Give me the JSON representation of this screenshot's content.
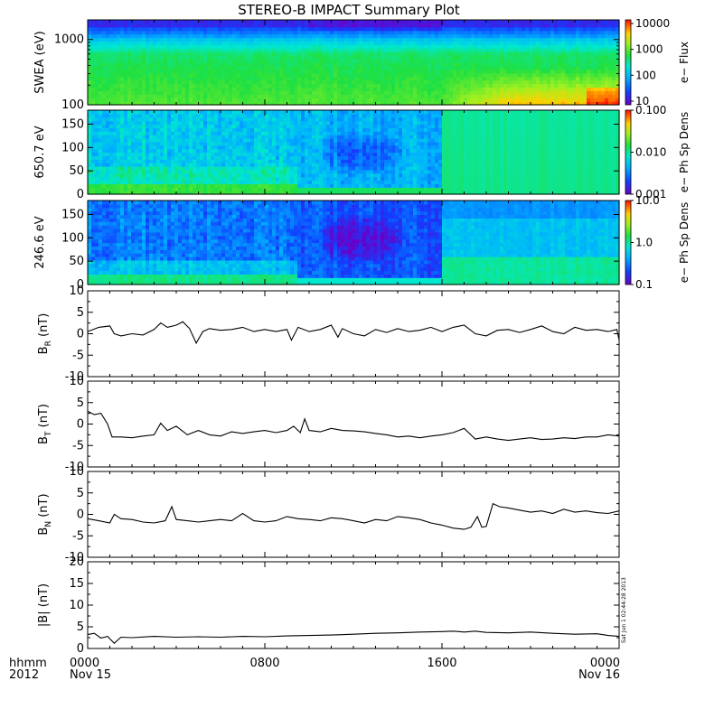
{
  "chart_data": {
    "type": "multi-panel",
    "title": "STEREO-B IMPACT Summary Plot",
    "x": {
      "ticks": [
        "0000",
        "0800",
        "1600",
        "0000"
      ],
      "tick_hours": [
        0,
        8,
        16,
        24
      ],
      "range_hours": [
        0,
        24
      ],
      "date_labels": [
        {
          "hour": 0,
          "label": "Nov 15"
        },
        {
          "hour": 24,
          "label": "Nov 16"
        }
      ],
      "label_time": "hhmm",
      "label_year": "2012"
    },
    "spectrograms": [
      {
        "id": "swea",
        "ylabel": "SWEA (eV)",
        "yscale": "log",
        "ylim": [
          100,
          2000
        ],
        "yticks": [
          100,
          1000
        ],
        "ytick_labels": [
          "100",
          "1000"
        ],
        "colorbar_label": "e− Flux",
        "colorbar_ticks": [
          "10",
          "100",
          "1000",
          "10000"
        ],
        "palette": "high-green"
      },
      {
        "id": "pad650",
        "ylabel": "650.7 eV",
        "yscale": "linear",
        "ylim": [
          0,
          180
        ],
        "yticks": [
          0,
          50,
          100,
          150
        ],
        "colorbar_label": "e− Ph Sp Dens",
        "colorbar_ticks": [
          "0.001",
          "0.010",
          "0.100"
        ],
        "palette": "mid-blue"
      },
      {
        "id": "pad246",
        "ylabel": "246.6 eV",
        "yscale": "linear",
        "ylim": [
          0,
          180
        ],
        "yticks": [
          0,
          50,
          100,
          150
        ],
        "colorbar_label": "e− Ph Sp Dens",
        "colorbar_ticks": [
          "0.1",
          "1.0",
          "10.0"
        ],
        "palette": "low-blue"
      }
    ],
    "line_panels": [
      {
        "id": "br",
        "label_main": "B",
        "label_sub": "R",
        "label_unit": " (nT)",
        "ylim": [
          -10,
          10
        ],
        "yticks": [
          -10,
          -5,
          0,
          5,
          10
        ],
        "hours": [
          0,
          0.5,
          1,
          1.2,
          1.5,
          2,
          2.5,
          3,
          3.3,
          3.6,
          4,
          4.3,
          4.6,
          4.9,
          5.2,
          5.5,
          6,
          6.5,
          7,
          7.5,
          8,
          8.5,
          9,
          9.2,
          9.5,
          10,
          10.5,
          11,
          11.3,
          11.5,
          12,
          12.5,
          13,
          13.5,
          14,
          14.5,
          15,
          15.5,
          16,
          16.5,
          17,
          17.5,
          18,
          18.5,
          19,
          19.5,
          20,
          20.5,
          21,
          21.5,
          22,
          22.5,
          23,
          23.5,
          23.9,
          24
        ],
        "values": [
          0.5,
          1.5,
          1.8,
          0,
          -0.5,
          0,
          -0.3,
          1,
          2.5,
          1.5,
          2,
          2.8,
          1.2,
          -2.2,
          0.5,
          1.2,
          0.8,
          1,
          1.5,
          0.5,
          1,
          0.5,
          1,
          -1.5,
          1.5,
          0.5,
          1,
          2,
          -0.8,
          1.2,
          0,
          -0.5,
          1,
          0.3,
          1.2,
          0.5,
          0.8,
          1.5,
          0.5,
          1.5,
          2,
          0,
          -0.5,
          0.8,
          1,
          0.3,
          1,
          1.8,
          0.5,
          0,
          1.5,
          0.8,
          1,
          0.5,
          1,
          -1.5
        ]
      },
      {
        "id": "bt",
        "label_main": "B",
        "label_sub": "T",
        "label_unit": " (nT)",
        "ylim": [
          -10,
          10
        ],
        "yticks": [
          -10,
          -5,
          0,
          5,
          10
        ],
        "hours": [
          0,
          0.3,
          0.6,
          0.9,
          1.1,
          1.5,
          2,
          2.5,
          3,
          3.3,
          3.6,
          4,
          4.5,
          5,
          5.5,
          6,
          6.5,
          7,
          7.5,
          8,
          8.5,
          9,
          9.3,
          9.6,
          9.8,
          10,
          10.5,
          11,
          11.5,
          12,
          12.5,
          13,
          13.5,
          14,
          14.5,
          15,
          15.5,
          16,
          16.5,
          17,
          17.2,
          17.5,
          18,
          18.5,
          19,
          19.5,
          20,
          20.5,
          21,
          21.5,
          22,
          22.5,
          23,
          23.5,
          24
        ],
        "values": [
          3,
          2.2,
          2.5,
          0,
          -3,
          -3,
          -3.2,
          -2.8,
          -2.5,
          0.2,
          -1.5,
          -0.5,
          -2.5,
          -1.5,
          -2.5,
          -2.8,
          -1.8,
          -2.2,
          -1.8,
          -1.5,
          -2,
          -1.5,
          -0.5,
          -2,
          1.2,
          -1.5,
          -1.8,
          -1,
          -1.5,
          -1.6,
          -1.8,
          -2.2,
          -2.5,
          -3,
          -2.8,
          -3.2,
          -2.8,
          -2.5,
          -2,
          -1,
          -2,
          -3.5,
          -3,
          -3.5,
          -3.8,
          -3.5,
          -3.2,
          -3.6,
          -3.5,
          -3.2,
          -3.4,
          -3,
          -3,
          -2.5,
          -2.8
        ]
      },
      {
        "id": "bn",
        "label_main": "B",
        "label_sub": "N",
        "label_unit": " (nT)",
        "ylim": [
          -10,
          10
        ],
        "yticks": [
          -10,
          -5,
          0,
          5,
          10
        ],
        "hours": [
          0,
          0.5,
          1,
          1.2,
          1.5,
          2,
          2.5,
          3,
          3.5,
          3.8,
          4,
          4.5,
          5,
          5.5,
          6,
          6.5,
          7,
          7.5,
          8,
          8.5,
          9,
          9.5,
          10,
          10.5,
          11,
          11.5,
          12,
          12.5,
          13,
          13.5,
          14,
          14.5,
          15,
          15.5,
          16,
          16.5,
          17,
          17.3,
          17.6,
          17.8,
          18,
          18.3,
          18.6,
          19,
          19.5,
          20,
          20.5,
          21,
          21.5,
          22,
          22.5,
          23,
          23.5,
          24
        ],
        "values": [
          -1,
          -1.5,
          -2,
          0,
          -1,
          -1.2,
          -1.8,
          -2,
          -1.5,
          1.8,
          -1.2,
          -1.5,
          -1.8,
          -1.5,
          -1.2,
          -1.5,
          0.2,
          -1.5,
          -1.8,
          -1.5,
          -0.5,
          -1,
          -1.2,
          -1.5,
          -0.8,
          -1,
          -1.5,
          -2,
          -1.2,
          -1.5,
          -0.5,
          -0.8,
          -1.2,
          -2,
          -2.5,
          -3.2,
          -3.5,
          -3,
          -0.5,
          -3,
          -2.8,
          2.5,
          1.8,
          1.5,
          1,
          0.5,
          0.8,
          0.2,
          1.2,
          0.5,
          0.8,
          0.4,
          0.2,
          0.8
        ]
      },
      {
        "id": "bmag",
        "label_main": "|B|",
        "label_sub": "",
        "label_unit": " (nT)",
        "ylim": [
          0,
          20
        ],
        "yticks": [
          0,
          5,
          10,
          15,
          20
        ],
        "hours": [
          0,
          0.3,
          0.6,
          0.9,
          1.2,
          1.5,
          2,
          3,
          4,
          5,
          6,
          7,
          8,
          9,
          10,
          11,
          12,
          13,
          14,
          15,
          16,
          16.5,
          17,
          17.5,
          18,
          19,
          20,
          21,
          22,
          23,
          23.5,
          24
        ],
        "values": [
          3.2,
          3.5,
          2.4,
          2.8,
          1.2,
          2.6,
          2.5,
          2.8,
          2.6,
          2.7,
          2.6,
          2.8,
          2.7,
          2.9,
          3,
          3.1,
          3.3,
          3.5,
          3.6,
          3.8,
          3.9,
          4,
          3.8,
          4,
          3.7,
          3.6,
          3.8,
          3.5,
          3.3,
          3.4,
          3,
          2.8
        ]
      }
    ],
    "footer_stamp": "Sat Jun  1 02:44:28 2013"
  }
}
